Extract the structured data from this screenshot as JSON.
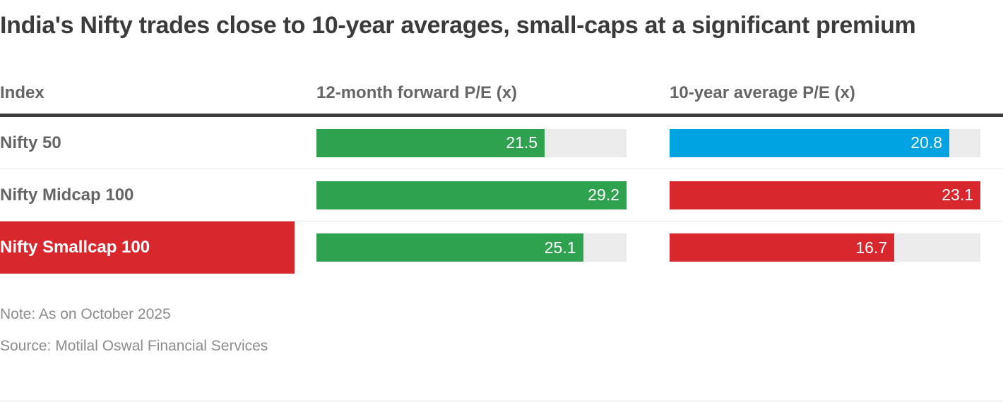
{
  "chart_data": {
    "type": "bar",
    "title": "India's Nifty trades close to 10-year averages, small-caps at a significant premium",
    "columns": [
      "Index",
      "12-month forward P/E (x)",
      "10-year average P/E (x)"
    ],
    "categories": [
      "Nifty 50",
      "Nifty Midcap 100",
      "Nifty Smallcap 100"
    ],
    "series": [
      {
        "name": "12-month forward P/E (x)",
        "values": [
          21.5,
          29.2,
          25.1
        ],
        "colors": [
          "#2ea24e",
          "#2ea24e",
          "#2ea24e"
        ],
        "axis_max": 29.2
      },
      {
        "name": "10-year average P/E (x)",
        "values": [
          20.8,
          23.1,
          16.7
        ],
        "colors": [
          "#00a3e1",
          "#d9282d",
          "#d9282d"
        ],
        "axis_max": 23.1
      }
    ],
    "highlighted_category": "Nifty Smallcap 100",
    "bar_scaling": "each column scaled relative to its own maximum value",
    "legend_position": "none",
    "grid": false
  },
  "notes": {
    "note": "Note: As on October 2025",
    "source": "Source: Motilal Oswal Financial Services"
  },
  "colors": {
    "title_text": "#3b3b3b",
    "header_text": "#666666",
    "header_rule": "#3a3a3a",
    "row_divider": "#e9e9e9",
    "bar_track": "#ebebeb",
    "green_bar": "#2ea24e",
    "blue_bar": "#00a3e1",
    "red_bar": "#d9282d",
    "highlight_row_bg": "#d9282d",
    "bar_value_text": "#ffffff",
    "note_text": "#8c8c8c"
  }
}
